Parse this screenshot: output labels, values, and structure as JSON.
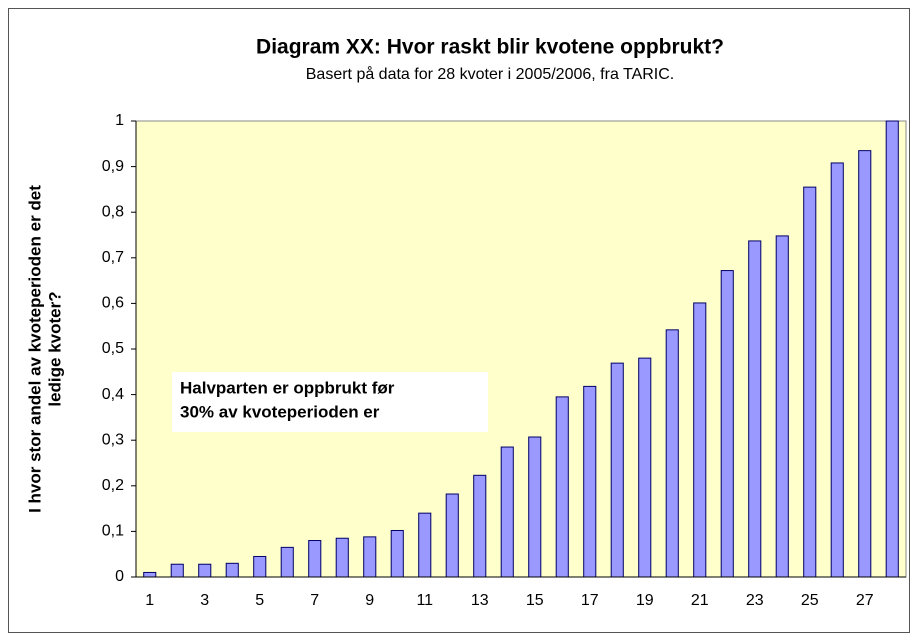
{
  "chart_data": {
    "type": "bar",
    "title": "Diagram XX: Hvor raskt blir kvotene oppbrukt?",
    "subtitle": "Basert på data for 28 kvoter i 2005/2006, fra TARIC.",
    "y_label": [
      "I hvor stor andel av kvoteperioden er det",
      "ledige kvoter?"
    ],
    "annotation": [
      "Halvparten er oppbrukt før",
      "30% av kvoteperioden er"
    ],
    "categories": [
      "1",
      null,
      "3",
      null,
      "5",
      null,
      "7",
      null,
      "9",
      null,
      "11",
      null,
      "13",
      null,
      "15",
      null,
      "17",
      null,
      "19",
      null,
      "21",
      null,
      "23",
      null,
      "25",
      null,
      "27",
      null
    ],
    "values": [
      0.01,
      0.028,
      0.028,
      0.03,
      0.045,
      0.065,
      0.08,
      0.085,
      0.088,
      0.102,
      0.14,
      0.182,
      0.223,
      0.285,
      0.307,
      0.395,
      0.418,
      0.469,
      0.48,
      0.542,
      0.601,
      0.672,
      0.737,
      0.748,
      0.855,
      0.908,
      0.935,
      1
    ],
    "color": "#9999ff",
    "ylim": [
      0,
      1
    ],
    "yticks": [
      0,
      {
        "value": 0.1,
        "label": "0,1"
      },
      {
        "value": 0.2,
        "label": "0,2"
      },
      {
        "value": 0.3,
        "label": "0,3"
      },
      {
        "value": 0.4,
        "label": "0,4"
      },
      {
        "value": 0.5,
        "label": "0,5"
      },
      {
        "value": 0.6,
        "label": "0,6"
      },
      {
        "value": 0.7,
        "label": "0,7"
      },
      {
        "value": 0.8,
        "label": "0,8"
      },
      {
        "value": 0.9,
        "label": "0,9"
      },
      1
    ],
    "grid": false
  }
}
